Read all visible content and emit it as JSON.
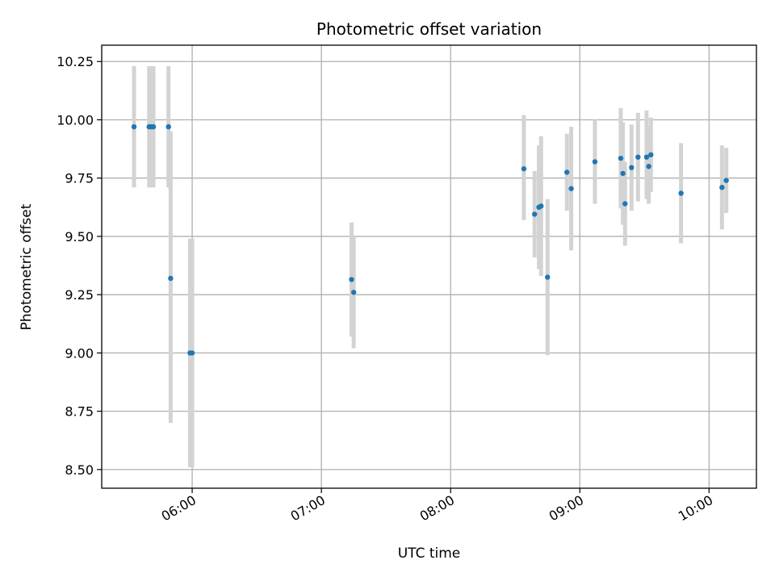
{
  "chart_data": {
    "type": "scatter",
    "title": "Photometric offset variation",
    "xlabel": "UTC time",
    "ylabel": "Photometric offset",
    "xlim": [
      "05:18",
      "10:22"
    ],
    "ylim": [
      8.42,
      10.32
    ],
    "x_ticks": [
      "06:00",
      "07:00",
      "08:00",
      "09:00",
      "10:00"
    ],
    "y_ticks": [
      "8.50",
      "8.75",
      "9.00",
      "9.25",
      "9.50",
      "9.75",
      "10.00",
      "10.25"
    ],
    "grid": true,
    "colors": {
      "points": "#1f77b4",
      "errorbars": "#d3d3d3",
      "grid": "#b0b0b0"
    },
    "series": [
      {
        "name": "offset",
        "points": [
          {
            "t": "05:33",
            "y": 9.97,
            "err_low": 9.71,
            "err_high": 10.23
          },
          {
            "t": "05:40",
            "y": 9.97,
            "err_low": 9.71,
            "err_high": 10.23
          },
          {
            "t": "05:41",
            "y": 9.97,
            "err_low": 9.71,
            "err_high": 10.23
          },
          {
            "t": "05:42",
            "y": 9.97,
            "err_low": 9.71,
            "err_high": 10.23
          },
          {
            "t": "05:49",
            "y": 9.97,
            "err_low": 9.71,
            "err_high": 10.23
          },
          {
            "t": "05:50",
            "y": 9.32,
            "err_low": 8.7,
            "err_high": 9.95
          },
          {
            "t": "05:59",
            "y": 9.0,
            "err_low": 8.51,
            "err_high": 9.49
          },
          {
            "t": "06:00",
            "y": 9.0,
            "err_low": 8.51,
            "err_high": 9.49
          },
          {
            "t": "07:14",
            "y": 9.315,
            "err_low": 9.07,
            "err_high": 9.56
          },
          {
            "t": "07:15",
            "y": 9.26,
            "err_low": 9.02,
            "err_high": 9.5
          },
          {
            "t": "08:34",
            "y": 9.79,
            "err_low": 9.57,
            "err_high": 10.02
          },
          {
            "t": "08:39",
            "y": 9.595,
            "err_low": 9.41,
            "err_high": 9.78
          },
          {
            "t": "08:41",
            "y": 9.625,
            "err_low": 9.36,
            "err_high": 9.89
          },
          {
            "t": "08:42",
            "y": 9.63,
            "err_low": 9.33,
            "err_high": 9.93
          },
          {
            "t": "08:45",
            "y": 9.325,
            "err_low": 8.99,
            "err_high": 9.66
          },
          {
            "t": "08:54",
            "y": 9.775,
            "err_low": 9.61,
            "err_high": 9.94
          },
          {
            "t": "08:56",
            "y": 9.705,
            "err_low": 9.44,
            "err_high": 9.97
          },
          {
            "t": "09:07",
            "y": 9.82,
            "err_low": 9.64,
            "err_high": 10.0
          },
          {
            "t": "09:19",
            "y": 9.835,
            "err_low": 9.62,
            "err_high": 10.05
          },
          {
            "t": "09:20",
            "y": 9.77,
            "err_low": 9.55,
            "err_high": 9.99
          },
          {
            "t": "09:21",
            "y": 9.64,
            "err_low": 9.46,
            "err_high": 9.82
          },
          {
            "t": "09:24",
            "y": 9.795,
            "err_low": 9.61,
            "err_high": 9.98
          },
          {
            "t": "09:27",
            "y": 9.84,
            "err_low": 9.65,
            "err_high": 10.03
          },
          {
            "t": "09:31",
            "y": 9.84,
            "err_low": 9.66,
            "err_high": 10.04
          },
          {
            "t": "09:32",
            "y": 9.8,
            "err_low": 9.64,
            "err_high": 9.97
          },
          {
            "t": "09:33",
            "y": 9.85,
            "err_low": 9.69,
            "err_high": 10.01
          },
          {
            "t": "09:47",
            "y": 9.685,
            "err_low": 9.47,
            "err_high": 9.9
          },
          {
            "t": "10:06",
            "y": 9.71,
            "err_low": 9.53,
            "err_high": 9.89
          },
          {
            "t": "10:08",
            "y": 9.74,
            "err_low": 9.6,
            "err_high": 9.88
          }
        ]
      }
    ]
  }
}
